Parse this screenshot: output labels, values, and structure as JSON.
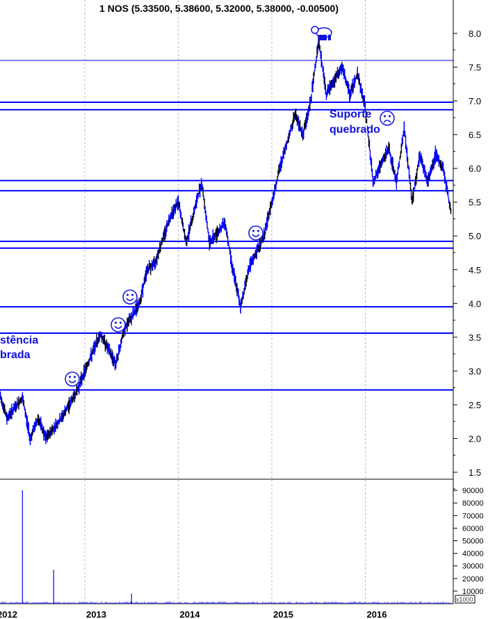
{
  "chart_data": {
    "type": "line",
    "title": "1 NOS (5.33500, 5.38600, 5.32000, 5.38000, -0.00500)",
    "price_axis": {
      "ylim": [
        1.5,
        8.0
      ],
      "ticks": [
        "8.0",
        "7.5",
        "7.0",
        "6.5",
        "6.0",
        "5.5",
        "5.0",
        "4.5",
        "4.0",
        "3.5",
        "3.0",
        "2.5",
        "2.0",
        "1.5"
      ],
      "side": "right"
    },
    "volume_axis": {
      "ylim": [
        0,
        90000
      ],
      "ticks": [
        "90000",
        "80000",
        "70000",
        "60000",
        "50000",
        "40000",
        "30000",
        "20000",
        "10000"
      ],
      "unit": "x1000"
    },
    "x_ticks": [
      "2012",
      "2013",
      "2014",
      "2015",
      "2016"
    ],
    "grid": "vertical dashed at year boundaries",
    "series": [
      {
        "color": "#0000ff",
        "points": [
          [
            "2012-02",
            2.7
          ],
          [
            "2012-03",
            2.3
          ],
          [
            "2012-05",
            2.6
          ],
          [
            "2012-06",
            2.0
          ],
          [
            "2012-07",
            2.3
          ],
          [
            "2012-08",
            2.0
          ],
          [
            "2012-10",
            2.3
          ],
          [
            "2012-12",
            2.7
          ],
          [
            "2013-01",
            3.0
          ],
          [
            "2013-03",
            3.55
          ],
          [
            "2013-05",
            3.1
          ],
          [
            "2013-06",
            3.6
          ],
          [
            "2013-08",
            4.0
          ],
          [
            "2013-09",
            4.5
          ],
          [
            "2013-10",
            4.6
          ],
          [
            "2013-12",
            5.3
          ],
          [
            "2014-01",
            5.5
          ],
          [
            "2014-02",
            4.9
          ],
          [
            "2014-04",
            5.8
          ],
          [
            "2014-05",
            4.9
          ],
          [
            "2014-07",
            5.2
          ],
          [
            "2014-08",
            4.5
          ],
          [
            "2014-09",
            3.95
          ],
          [
            "2014-10",
            4.5
          ],
          [
            "2014-12",
            5.0
          ],
          [
            "2015-01",
            5.5
          ],
          [
            "2015-02",
            6.0
          ],
          [
            "2015-04",
            6.8
          ],
          [
            "2015-05",
            6.5
          ],
          [
            "2015-06",
            7.0
          ],
          [
            "2015-07",
            7.9
          ],
          [
            "2015-08",
            7.1
          ],
          [
            "2015-10",
            7.5
          ],
          [
            "2015-11",
            7.1
          ],
          [
            "2015-12",
            7.4
          ],
          [
            "2016-01",
            6.9
          ],
          [
            "2016-02",
            5.8
          ],
          [
            "2016-04",
            6.3
          ],
          [
            "2016-05",
            5.8
          ],
          [
            "2016-06",
            6.6
          ],
          [
            "2016-07",
            5.5
          ],
          [
            "2016-08",
            6.2
          ],
          [
            "2016-09",
            5.8
          ],
          [
            "2016-10",
            6.2
          ],
          [
            "2016-11",
            6.0
          ],
          [
            "2016-12",
            5.35
          ]
        ]
      }
    ],
    "volume": [
      [
        "2012-05",
        90000
      ],
      [
        "2012-09",
        27000
      ],
      [
        "2013-07",
        8000
      ]
    ],
    "horizontal_levels": [
      7.6,
      6.98,
      6.87,
      5.82,
      5.67,
      4.92,
      4.82,
      3.95,
      3.56,
      2.72
    ],
    "annotations": {
      "resistance_line1": "stência",
      "resistance_line2": "brada",
      "support_line1": "Suporte",
      "support_line2": "quebrado"
    },
    "icons": {
      "bear": "bear-icon",
      "smiley": "smiley-icon",
      "frown": "frown-icon"
    },
    "colors": {
      "line": "#0000ff",
      "annotation": "#1010e0",
      "candles": "#000000"
    }
  }
}
